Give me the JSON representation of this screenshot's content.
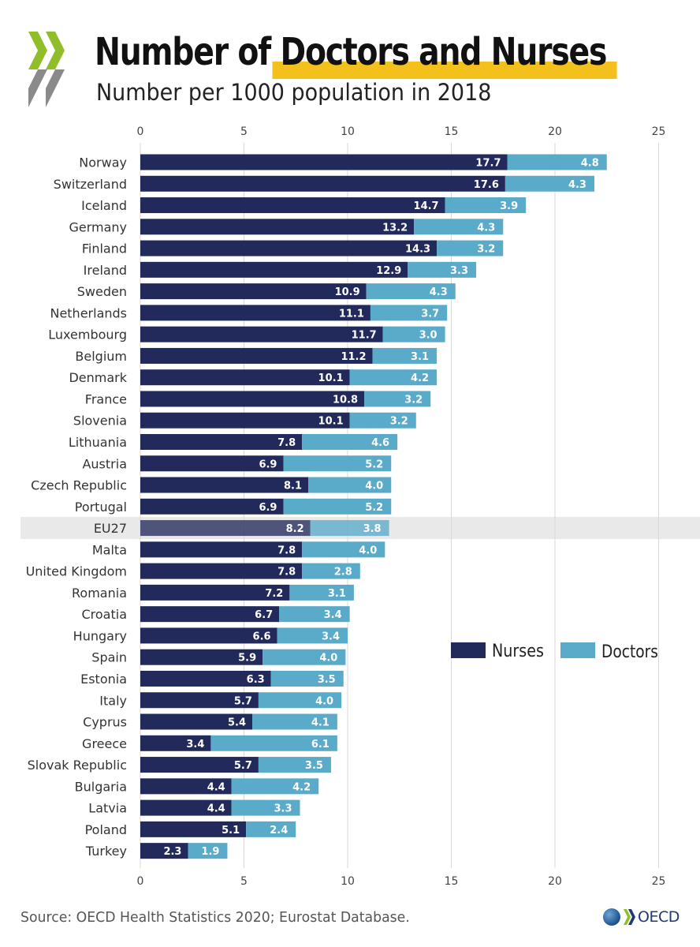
{
  "title": {
    "prefix": "Number of ",
    "highlight": "Doctors and Nurses"
  },
  "subtitle": "Number per 1000 population in 2018",
  "source": "Source: OECD Health Statistics 2020; Eurostat Database.",
  "logo_text": "OECD",
  "colors": {
    "nurses": "#222a5b",
    "doctors": "#5aaac9",
    "highlight": "#f3c01c",
    "eu_band": "#e9e9e9",
    "logo_green": "#8fbe2a",
    "logo_gray": "#8a8a8a"
  },
  "icons": [
    "oecd-chevron-logo",
    "oecd-globe-icon"
  ],
  "chart_data": {
    "type": "bar",
    "orientation": "horizontal",
    "stacked": true,
    "categories": [
      "Norway",
      "Switzerland",
      "Iceland",
      "Germany",
      "Finland",
      "Ireland",
      "Sweden",
      "Netherlands",
      "Luxembourg",
      "Belgium",
      "Denmark",
      "France",
      "Slovenia",
      "Lithuania",
      "Austria",
      "Czech Republic",
      "Portugal",
      "EU27",
      "Malta",
      "United Kingdom",
      "Romania",
      "Croatia",
      "Hungary",
      "Spain",
      "Estonia",
      "Italy",
      "Cyprus",
      "Greece",
      "Slovak Republic",
      "Bulgaria",
      "Latvia",
      "Poland",
      "Turkey"
    ],
    "series": [
      {
        "name": "Nurses",
        "values": [
          17.7,
          17.6,
          14.7,
          13.2,
          14.3,
          12.9,
          10.9,
          11.1,
          11.7,
          11.2,
          10.1,
          10.8,
          10.1,
          7.8,
          6.9,
          8.1,
          6.9,
          8.2,
          7.8,
          7.8,
          7.2,
          6.7,
          6.6,
          5.9,
          6.3,
          5.7,
          5.4,
          3.4,
          5.7,
          4.4,
          4.4,
          5.1,
          2.3
        ]
      },
      {
        "name": "Doctors",
        "values": [
          4.8,
          4.3,
          3.9,
          4.3,
          3.2,
          3.3,
          4.3,
          3.7,
          3.0,
          3.1,
          4.2,
          3.2,
          3.2,
          4.6,
          5.2,
          4.0,
          5.2,
          3.8,
          4.0,
          2.8,
          3.1,
          3.4,
          3.4,
          4.0,
          3.5,
          4.0,
          4.1,
          6.1,
          3.5,
          4.2,
          3.3,
          2.4,
          1.9
        ]
      }
    ],
    "highlight_category": "EU27",
    "xlim": [
      0,
      25
    ],
    "xticks": [
      0,
      5,
      10,
      15,
      20,
      25
    ],
    "xaxis_position": "top and bottom",
    "grid": "vertical",
    "legend_position": "right, middle",
    "data_labels": true
  }
}
